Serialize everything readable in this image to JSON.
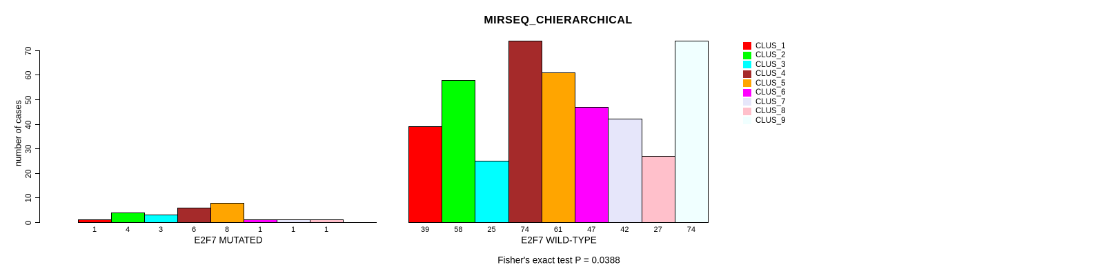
{
  "chart_data": {
    "type": "bar",
    "title": "MIRSEQ_CHIERARCHICAL",
    "ylabel": "number of cases",
    "ylim": [
      0,
      74
    ],
    "yticks": [
      0,
      10,
      20,
      30,
      40,
      50,
      60,
      70
    ],
    "grid": false,
    "background": "#ffffff",
    "legend_position": "right-outside",
    "categories": [
      "CLUS_1",
      "CLUS_2",
      "CLUS_3",
      "CLUS_4",
      "CLUS_5",
      "CLUS_6",
      "CLUS_7",
      "CLUS_8",
      "CLUS_9"
    ],
    "colors": [
      "#FF0000",
      "#00FF00",
      "#00FFFF",
      "#A52A2A",
      "#FFA500",
      "#FF00FF",
      "#E6E6FA",
      "#FFC0CB",
      "#F0FFFF"
    ],
    "panels": [
      {
        "xlabel": "E2F7 MUTATED",
        "values": [
          1,
          4,
          3,
          6,
          8,
          1,
          1,
          1,
          0
        ],
        "bar_labels": [
          "1",
          "4",
          "3",
          "6",
          "8",
          "1",
          "1",
          "1",
          ""
        ]
      },
      {
        "xlabel": "E2F7 WILD-TYPE",
        "values": [
          39,
          58,
          25,
          74,
          61,
          47,
          42,
          27,
          74
        ],
        "bar_labels": [
          "39",
          "58",
          "25",
          "74",
          "61",
          "47",
          "42",
          "27",
          "74"
        ]
      }
    ],
    "annotation": "Fisher's exact test P = 0.0388"
  }
}
